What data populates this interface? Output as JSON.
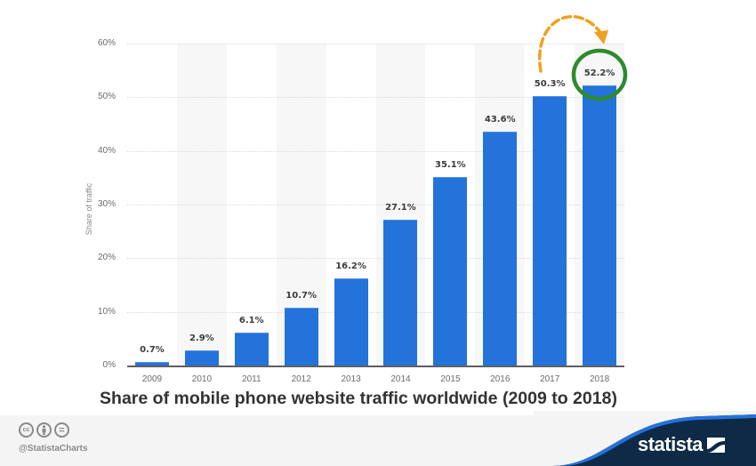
{
  "chart_data": {
    "type": "bar",
    "title": "Share of mobile phone website traffic worldwide (2009 to 2018)",
    "xlabel": "",
    "ylabel": "Share of traffic",
    "ylim": [
      0,
      60
    ],
    "yticks": [
      "0%",
      "10%",
      "20%",
      "30%",
      "40%",
      "50%",
      "60%"
    ],
    "grid": true,
    "categories": [
      "2009",
      "2010",
      "2011",
      "2012",
      "2013",
      "2014",
      "2015",
      "2016",
      "2017",
      "2018"
    ],
    "values": [
      0.7,
      2.9,
      6.1,
      10.7,
      16.2,
      27.1,
      35.1,
      43.6,
      50.3,
      52.2
    ],
    "data_labels": [
      "0.7%",
      "2.9%",
      "6.1%",
      "10.7%",
      "16.2%",
      "27.1%",
      "35.1%",
      "43.6%",
      "50.3%",
      "52.2%"
    ],
    "bar_color": "#2473db",
    "annotations": [
      {
        "type": "dashed-arrow",
        "from": "2017",
        "to": "2018",
        "color": "#f0a020"
      },
      {
        "type": "circle",
        "target": "2018",
        "label": "52.2%",
        "color": "#2e8b2e"
      }
    ]
  },
  "footer": {
    "license_icons": [
      "cc-icon",
      "by-attribution-icon",
      "no-derivatives-icon"
    ],
    "cc_label": "cc",
    "nd_label": "=",
    "handle": "@StatistaCharts",
    "brand": "statista",
    "brand_bg": "#0e2a47",
    "brand_accent": "#2473db"
  }
}
